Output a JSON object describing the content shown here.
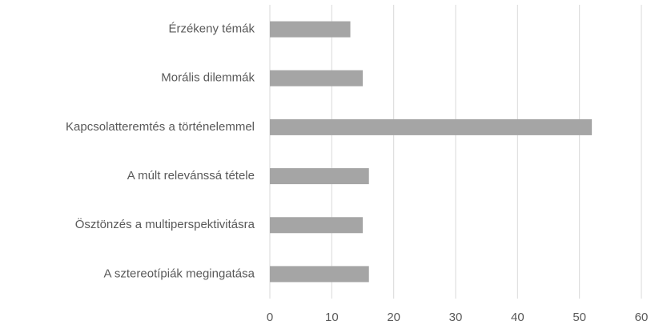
{
  "chart_data": {
    "type": "bar",
    "orientation": "horizontal",
    "categories": [
      "Érzékeny témák",
      "Morális dilemmák",
      "Kapcsolatteremtés a történelemmel",
      "A múlt relevánssá tétele",
      "Ösztönzés a multiperspektivitásra",
      "A sztereotípiák megingatása"
    ],
    "values": [
      13,
      15,
      52,
      16,
      15,
      16
    ],
    "color": "#a5a5a5",
    "xlim": [
      0,
      60
    ],
    "xticks": [
      0,
      10,
      20,
      30,
      40,
      50,
      60
    ],
    "grid": true
  }
}
